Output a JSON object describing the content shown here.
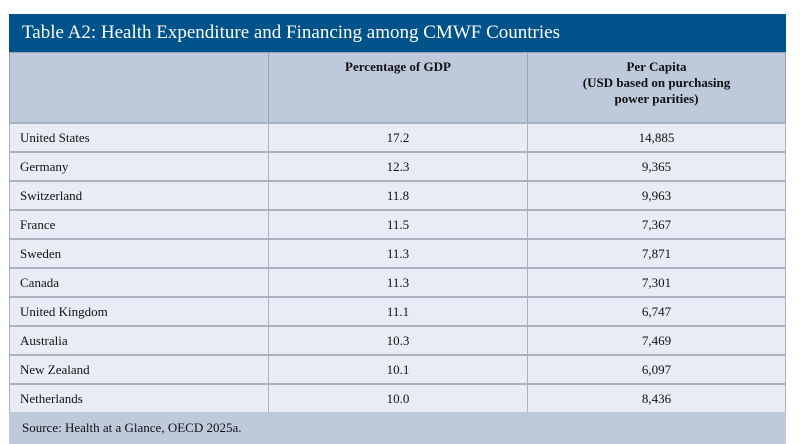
{
  "title": "Table A2: Health Expenditure and Financing among CMWF Countries",
  "headers": {
    "country": "",
    "gdp": "Percentage of GDP",
    "per_capita_line1": "Per Capita",
    "per_capita_line2": "(USD based on purchasing",
    "per_capita_line3": "power parities)"
  },
  "rows": [
    {
      "country": "United States",
      "gdp": "17.2",
      "per_capita": "14,885"
    },
    {
      "country": "Germany",
      "gdp": "12.3",
      "per_capita": "9,365"
    },
    {
      "country": "Switzerland",
      "gdp": "11.8",
      "per_capita": "9,963"
    },
    {
      "country": "France",
      "gdp": "11.5",
      "per_capita": "7,367"
    },
    {
      "country": "Sweden",
      "gdp": "11.3",
      "per_capita": "7,871"
    },
    {
      "country": "Canada",
      "gdp": "11.3",
      "per_capita": "7,301"
    },
    {
      "country": "United Kingdom",
      "gdp": "11.1",
      "per_capita": "6,747"
    },
    {
      "country": "Australia",
      "gdp": "10.3",
      "per_capita": "7,469"
    },
    {
      "country": "New Zealand",
      "gdp": "10.1",
      "per_capita": "6,097"
    },
    {
      "country": "Netherlands",
      "gdp": "10.0",
      "per_capita": "8,436"
    }
  ],
  "source": "Source: Health at a Glance, OECD 2025a.",
  "colors": {
    "title_bg": "#00528a",
    "header_bg": "#bfc9dc",
    "row_bg": "#e9ecf4"
  }
}
